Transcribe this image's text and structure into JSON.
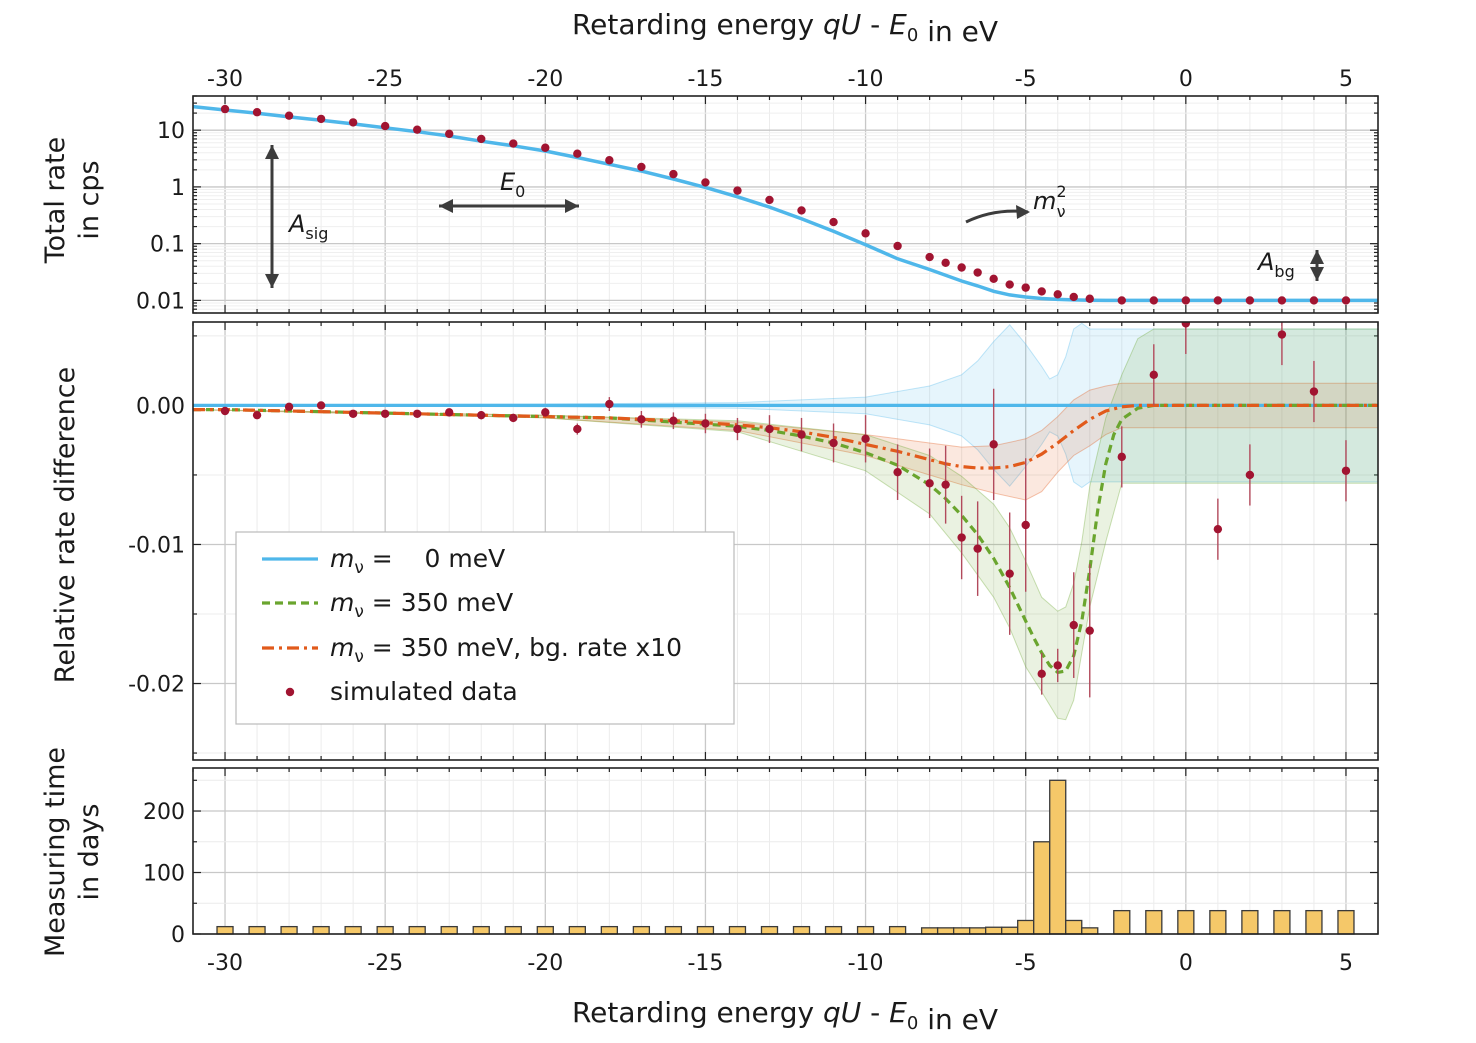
{
  "chart_data": [
    {
      "type": "line",
      "panel": "total-rate",
      "ylabel": [
        "Total rate",
        "in cps"
      ],
      "xlabel_top": "Retarding energy qU - E0 in eV",
      "xlim": [
        -31,
        6
      ],
      "ylim": [
        0.006,
        40
      ],
      "yscale": "log",
      "xticks": [
        "-30",
        "-25",
        "-20",
        "-15",
        "-10",
        "-5",
        "0",
        "5"
      ],
      "yticks": [
        "10",
        "1",
        "0.1",
        "0.01"
      ],
      "grid": true,
      "series": [
        {
          "name": "",
          "color": "#4fb7ea",
          "x": [
            -31,
            -30,
            -29,
            -28,
            -27,
            -26,
            -25,
            -24,
            -23,
            -22,
            -21,
            -20,
            -19,
            -18,
            -17,
            -16,
            -15,
            -14,
            -13,
            -12,
            -11,
            -10,
            -9,
            -8,
            -7,
            -6.5,
            -6,
            -5.5,
            -5,
            -4.5,
            -4,
            -3.5,
            -3,
            -2.5,
            -2,
            6
          ],
          "y": [
            26,
            22.7,
            19.9,
            17.1,
            15.0,
            12.9,
            11.0,
            9.4,
            7.9,
            6.4,
            5.3,
            4.3,
            3.3,
            2.5,
            1.9,
            1.38,
            0.98,
            0.67,
            0.44,
            0.275,
            0.165,
            0.096,
            0.054,
            0.035,
            0.022,
            0.018,
            0.0145,
            0.0125,
            0.0115,
            0.0108,
            0.0104,
            0.0102,
            0.0101,
            0.01,
            0.01,
            0.01
          ]
        },
        {
          "name": "simulated data",
          "color": "#a11431",
          "style": "points",
          "x": [
            -30,
            -29,
            -28,
            -27,
            -26,
            -25,
            -24,
            -23,
            -22,
            -21,
            -20,
            -19,
            -18,
            -17,
            -16,
            -15,
            -14,
            -13,
            -12,
            -11,
            -10,
            -9,
            -8,
            -7.5,
            -7,
            -6.5,
            -6,
            -5.5,
            -5,
            -4.5,
            -4,
            -3.5,
            -3,
            -2,
            -1,
            0,
            1,
            2,
            3,
            4,
            5
          ],
          "y": [
            23.5,
            20.7,
            18.0,
            15.8,
            13.7,
            11.8,
            10.2,
            8.6,
            7.0,
            5.8,
            4.9,
            3.85,
            2.95,
            2.25,
            1.68,
            1.2,
            0.86,
            0.59,
            0.385,
            0.24,
            0.152,
            0.091,
            0.058,
            0.046,
            0.038,
            0.031,
            0.024,
            0.019,
            0.0168,
            0.0144,
            0.0128,
            0.0115,
            0.0107,
            0.01,
            0.01,
            0.01,
            0.01,
            0.01,
            0.01,
            0.01,
            0.01
          ]
        }
      ],
      "annotations": [
        {
          "text": "A",
          "sub": "sig"
        },
        {
          "text": "E",
          "sub": "0"
        },
        {
          "text": "m",
          "sub": "ν",
          "sup": "2"
        },
        {
          "text": "A",
          "sub": "bg"
        }
      ]
    },
    {
      "type": "line",
      "panel": "relative-difference",
      "ylabel": "Relative rate difference",
      "xlim": [
        -31,
        6
      ],
      "ylim": [
        -0.0255,
        0.006
      ],
      "yticks": [
        "0.00",
        "-0.01",
        "-0.02"
      ],
      "grid": true,
      "series": [
        {
          "name": "mν =    0 meV",
          "color": "#4fb7ea",
          "x": [
            -31,
            6
          ],
          "y": [
            0,
            0
          ]
        },
        {
          "name": "mν = 350 meV",
          "color": "#6aa52e",
          "x": [
            -31,
            -30,
            -28,
            -26,
            -24,
            -22,
            -20,
            -18,
            -16,
            -14,
            -13,
            -12,
            -11,
            -10,
            -9,
            -8,
            -7.5,
            -7,
            -6.5,
            -6,
            -5.5,
            -5,
            -4.75,
            -4.5,
            -4.25,
            -4,
            -3.75,
            -3.5,
            -3.25,
            -3,
            -2.75,
            -2.5,
            -2.25,
            -2,
            -1.5,
            -1,
            6
          ],
          "y": [
            -0.0003,
            -0.0003,
            -0.0004,
            -0.0005,
            -0.0006,
            -0.0007,
            -0.0008,
            -0.0009,
            -0.0012,
            -0.0015,
            -0.0018,
            -0.0022,
            -0.0027,
            -0.0034,
            -0.0043,
            -0.0057,
            -0.0067,
            -0.0079,
            -0.0093,
            -0.011,
            -0.0131,
            -0.0155,
            -0.0167,
            -0.0178,
            -0.0187,
            -0.0192,
            -0.0191,
            -0.018,
            -0.0155,
            -0.0118,
            -0.0075,
            -0.0042,
            -0.0021,
            -0.001,
            -0.0002,
            0,
            0
          ]
        },
        {
          "name": "mν = 350 meV, bg. rate x10",
          "color": "#e15a1b",
          "x": [
            -31,
            -30,
            -28,
            -26,
            -24,
            -22,
            -20,
            -18,
            -16,
            -14,
            -13,
            -12,
            -11,
            -10,
            -9,
            -8,
            -7.5,
            -7,
            -6.5,
            -6,
            -5.5,
            -5,
            -4.5,
            -4,
            -3.5,
            -3,
            -2.5,
            -2,
            -1.5,
            -1,
            6
          ],
          "y": [
            -0.0003,
            -0.0003,
            -0.0004,
            -0.0005,
            -0.0006,
            -0.0007,
            -0.0008,
            -0.0009,
            -0.0011,
            -0.0014,
            -0.0016,
            -0.0019,
            -0.0023,
            -0.0028,
            -0.0033,
            -0.0039,
            -0.0042,
            -0.0044,
            -0.0045,
            -0.0045,
            -0.0044,
            -0.0041,
            -0.0035,
            -0.0027,
            -0.0018,
            -0.001,
            -0.0004,
            -0.0001,
            0,
            0,
            0
          ]
        },
        {
          "name": "simulated data",
          "color": "#a11431",
          "style": "points",
          "x": [
            -30,
            -29,
            -28,
            -27,
            -26,
            -25,
            -24,
            -23,
            -22,
            -21,
            -20,
            -19,
            -18,
            -17,
            -16,
            -15,
            -14,
            -13,
            -12,
            -11,
            -10,
            -9,
            -8,
            -7.5,
            -7,
            -6.5,
            -6,
            -5.5,
            -5,
            -4.5,
            -4,
            -3.5,
            -3,
            -2,
            -1,
            0,
            1,
            2,
            3,
            4,
            5
          ],
          "y": [
            -0.0004,
            -0.0007,
            -0.0001,
            0.0,
            -0.0006,
            -0.0006,
            -0.0006,
            -0.0005,
            -0.0007,
            -0.0009,
            -0.0005,
            -0.0017,
            0.0001,
            -0.001,
            -0.0011,
            -0.0013,
            -0.0017,
            -0.0017,
            -0.0021,
            -0.0027,
            -0.0024,
            -0.0048,
            -0.0056,
            -0.0057,
            -0.0095,
            -0.0103,
            -0.0028,
            -0.0121,
            -0.0086,
            -0.0193,
            -0.0187,
            -0.0158,
            -0.0162,
            -0.0037,
            0.0022,
            0.0059,
            -0.0089,
            -0.005,
            0.0051,
            0.001,
            -0.0047
          ],
          "yerr": [
            0.0002,
            0.0002,
            0.0002,
            0.0002,
            0.0002,
            0.0002,
            0.0002,
            0.0002,
            0.0003,
            0.0003,
            0.0003,
            0.0004,
            0.0005,
            0.0006,
            0.0006,
            0.0007,
            0.0008,
            0.001,
            0.0012,
            0.0014,
            0.0017,
            0.002,
            0.0025,
            0.0028,
            0.003,
            0.0034,
            0.004,
            0.0044,
            0.0048,
            0.0015,
            0.0012,
            0.0038,
            0.0048,
            0.0022,
            0.0022,
            0.0022,
            0.0022,
            0.0022,
            0.0022,
            0.0022,
            0.0022
          ]
        }
      ],
      "bands": [
        {
          "color": "#4fb7ea",
          "x": [
            -31,
            -20,
            -14,
            -10,
            -8,
            -7,
            -6.5,
            -6,
            -5.5,
            -5,
            -4.5,
            -4.25,
            -4,
            -3.75,
            -3.5,
            -3.25,
            -3,
            -2.5,
            -2,
            6
          ],
          "upper": [
            0,
            0.0001,
            0.0002,
            0.0006,
            0.0014,
            0.0022,
            0.0032,
            0.0046,
            0.0058,
            0.0044,
            0.0028,
            0.0019,
            0.0022,
            0.0035,
            0.0055,
            0.0059,
            0.0055,
            0.0055,
            0.0055,
            0.0055
          ],
          "lower": [
            0,
            -0.0001,
            -0.0002,
            -0.0006,
            -0.0014,
            -0.0022,
            -0.0032,
            -0.0046,
            -0.0058,
            -0.0044,
            -0.0028,
            -0.0019,
            -0.0022,
            -0.0035,
            -0.0055,
            -0.0059,
            -0.0055,
            -0.0055,
            -0.0055,
            -0.0055
          ]
        },
        {
          "color": "#e15a1b",
          "x": [
            -31,
            -20,
            -14,
            -10,
            -8,
            -7,
            -6,
            -5,
            -4.5,
            -4,
            -3.5,
            -3,
            -2.5,
            -2,
            -1,
            6
          ],
          "upper": [
            -0.0003,
            -0.0007,
            -0.0012,
            -0.0021,
            -0.0027,
            -0.003,
            -0.0029,
            -0.0024,
            -0.0018,
            -0.0008,
            0.0004,
            0.0011,
            0.0014,
            0.0016,
            0.0016,
            0.0016
          ],
          "lower": [
            -0.0003,
            -0.0009,
            -0.0018,
            -0.0036,
            -0.005,
            -0.0057,
            -0.0063,
            -0.0068,
            -0.0062,
            -0.0048,
            -0.0036,
            -0.0029,
            -0.0021,
            -0.0016,
            -0.0016,
            -0.0016
          ]
        },
        {
          "color": "#6aa52e",
          "x": [
            -31,
            -20,
            -14,
            -10,
            -8,
            -7,
            -6,
            -5.5,
            -5,
            -4.5,
            -4,
            -3.75,
            -3.5,
            -3.25,
            -3,
            -2.5,
            -2,
            -1.5,
            -1,
            6
          ],
          "upper": [
            -0.0003,
            -0.0007,
            -0.0011,
            -0.0021,
            -0.0036,
            -0.0051,
            -0.0071,
            -0.0088,
            -0.0112,
            -0.0138,
            -0.0148,
            -0.0145,
            -0.0128,
            -0.0098,
            -0.0058,
            -0.0009,
            0.0022,
            0.0048,
            0.0055,
            0.0055
          ],
          "lower": [
            -0.0003,
            -0.0009,
            -0.0019,
            -0.0047,
            -0.0078,
            -0.0106,
            -0.0138,
            -0.016,
            -0.0188,
            -0.0206,
            -0.0225,
            -0.0226,
            -0.0212,
            -0.0178,
            -0.0145,
            -0.0098,
            -0.0056,
            -0.0056,
            -0.0056,
            -0.0056
          ]
        }
      ],
      "legend": {
        "placement": "lower-left",
        "entries": [
          "mν =    0 meV",
          "mν = 350 meV",
          "mν = 350 meV, bg. rate x10",
          "simulated data"
        ]
      }
    },
    {
      "type": "bar",
      "panel": "measuring-time",
      "ylabel": [
        "Measuring time",
        "in days"
      ],
      "xlabel": "Retarding energy qU - E0 in eV",
      "xlim": [
        -31,
        6
      ],
      "ylim": [
        0,
        270
      ],
      "yticks": [
        "200",
        "100",
        "0"
      ],
      "xticks": [
        "-30",
        "-25",
        "-20",
        "-15",
        "-10",
        "-5",
        "0",
        "5"
      ],
      "grid": true,
      "color": "#f5c869",
      "x": [
        -30,
        -29,
        -28,
        -27,
        -26,
        -25,
        -24,
        -23,
        -22,
        -21,
        -20,
        -19,
        -18,
        -17,
        -16,
        -15,
        -14,
        -13,
        -12,
        -11,
        -10,
        -9,
        -8,
        -7.5,
        -7,
        -6.5,
        -6,
        -5.5,
        -5,
        -4.5,
        -4,
        -3.5,
        -3,
        -2,
        -1,
        0,
        1,
        2,
        3,
        4,
        5
      ],
      "widths": [
        0.5,
        0.5,
        0.5,
        0.5,
        0.5,
        0.5,
        0.5,
        0.5,
        0.5,
        0.5,
        0.5,
        0.5,
        0.5,
        0.5,
        0.5,
        0.5,
        0.5,
        0.5,
        0.5,
        0.5,
        0.5,
        0.5,
        0.5,
        0.5,
        0.5,
        0.5,
        0.5,
        0.5,
        0.5,
        0.5,
        0.5,
        0.5,
        0.5,
        0.5,
        0.5,
        0.5,
        0.5,
        0.5,
        0.5,
        0.5,
        0.5
      ],
      "values": [
        12,
        12,
        12,
        12,
        12,
        12,
        12,
        12,
        12,
        12,
        12,
        12,
        12,
        12,
        12,
        12,
        12,
        12,
        12,
        12,
        12,
        12,
        10,
        10,
        10,
        10,
        11,
        11,
        22,
        150,
        250,
        22,
        10,
        38,
        38,
        38,
        38,
        38,
        38,
        38,
        38
      ]
    }
  ]
}
